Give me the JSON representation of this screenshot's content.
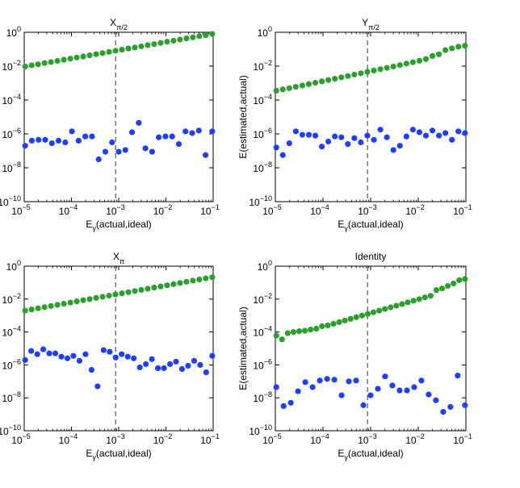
{
  "chart_data": [
    {
      "type": "scatter",
      "title": "X",
      "title_sub": "π/2",
      "xlabel": "E",
      "xlabel_sub": "γ",
      "xlabel_rest": "(actual,ideal)",
      "ylabel": "",
      "xscale": "log",
      "yscale": "log",
      "xlim": [
        1e-05,
        0.1
      ],
      "ylim": [
        1e-10,
        1
      ],
      "vline_x": 0.00086,
      "x_ticks": [
        {
          "base": "10",
          "exp": "−5"
        },
        {
          "base": "10",
          "exp": "−4"
        },
        {
          "base": "10",
          "exp": "−3"
        },
        {
          "base": "10",
          "exp": "−2"
        },
        {
          "base": "10",
          "exp": "−1"
        }
      ],
      "y_ticks": [
        {
          "base": "10",
          "exp": "−10"
        },
        {
          "base": "10",
          "exp": "−8"
        },
        {
          "base": "10",
          "exp": "−6"
        },
        {
          "base": "10",
          "exp": "−4"
        },
        {
          "base": "10",
          "exp": "−2"
        },
        {
          "base": "10",
          "exp": "0"
        }
      ],
      "series": [
        {
          "name": "green",
          "color": "#2ca02c",
          "log_y": [
            -2.02,
            -1.95,
            -1.89,
            -1.82,
            -1.76,
            -1.69,
            -1.62,
            -1.56,
            -1.49,
            -1.43,
            -1.36,
            -1.29,
            -1.23,
            -1.16,
            -1.09,
            -1.03,
            -0.96,
            -0.9,
            -0.83,
            -0.76,
            -0.7,
            -0.63,
            -0.56,
            -0.5,
            -0.43,
            -0.36,
            -0.3,
            -0.23,
            -0.17,
            -0.1
          ]
        },
        {
          "name": "blue",
          "color": "#1f3fff",
          "log_y": [
            -6.7,
            -6.4,
            -6.35,
            -6.35,
            -6.55,
            -6.4,
            -6.5,
            -5.85,
            -6.4,
            -6.15,
            -6.15,
            -7.5,
            -7.05,
            -6.5,
            -7.05,
            -6.95,
            -5.9,
            -5.35,
            -6.85,
            -7.05,
            -6.2,
            -6.15,
            -6.15,
            -6.6,
            -5.85,
            -5.95,
            -5.8,
            -7.25,
            -5.85
          ]
        }
      ]
    },
    {
      "type": "scatter",
      "title": "Y",
      "title_sub": "π/2",
      "xlabel": "E",
      "xlabel_sub": "γ",
      "xlabel_rest": "(actual,ideal)",
      "ylabel": "E(estimated,actual)",
      "xscale": "log",
      "yscale": "log",
      "xlim": [
        1e-05,
        0.1
      ],
      "ylim": [
        1e-10,
        1
      ],
      "vline_x": 0.00086,
      "x_ticks": [
        {
          "base": "10",
          "exp": "−5"
        },
        {
          "base": "10",
          "exp": "−4"
        },
        {
          "base": "10",
          "exp": "−3"
        },
        {
          "base": "10",
          "exp": "−2"
        },
        {
          "base": "10",
          "exp": "−1"
        }
      ],
      "y_ticks": [
        {
          "base": "10",
          "exp": "−10"
        },
        {
          "base": "10",
          "exp": "−8"
        },
        {
          "base": "10",
          "exp": "−6"
        },
        {
          "base": "10",
          "exp": "−4"
        },
        {
          "base": "10",
          "exp": "−2"
        },
        {
          "base": "10",
          "exp": "0"
        }
      ],
      "series": [
        {
          "name": "green",
          "color": "#2ca02c",
          "log_y": [
            -3.45,
            -3.37,
            -3.3,
            -3.22,
            -3.14,
            -3.06,
            -2.98,
            -2.9,
            -2.82,
            -2.74,
            -2.66,
            -2.58,
            -2.5,
            -2.42,
            -2.34,
            -2.26,
            -2.18,
            -2.1,
            -2.02,
            -1.94,
            -1.85,
            -1.77,
            -1.68,
            -1.58,
            -1.4,
            -1.3,
            -1.05,
            -0.95,
            -0.85,
            -0.8
          ]
        },
        {
          "name": "blue",
          "color": "#1f3fff",
          "log_y": [
            -6.8,
            -7.25,
            -6.55,
            -5.85,
            -6.05,
            -6.05,
            -6.1,
            -6.75,
            -6.45,
            -6.15,
            -6.2,
            -6.6,
            -6.25,
            -6.5,
            -6.1,
            -6.35,
            -5.75,
            -6.2,
            -6.95,
            -6.7,
            -6.15,
            -5.75,
            -5.9,
            -6.1,
            -5.8,
            -6.1,
            -5.95,
            -6.35,
            -5.85,
            -5.95
          ]
        }
      ]
    },
    {
      "type": "scatter",
      "title": "X",
      "title_sub": "π",
      "xlabel": "E",
      "xlabel_sub": "γ",
      "xlabel_rest": "(actual,ideal)",
      "ylabel": "",
      "xscale": "log",
      "yscale": "log",
      "xlim": [
        1e-05,
        0.1
      ],
      "ylim": [
        1e-10,
        1
      ],
      "vline_x": 0.00086,
      "x_ticks": [
        {
          "base": "10",
          "exp": "−5"
        },
        {
          "base": "10",
          "exp": "−4"
        },
        {
          "base": "10",
          "exp": "−3"
        },
        {
          "base": "10",
          "exp": "−2"
        },
        {
          "base": "10",
          "exp": "−1"
        }
      ],
      "y_ticks": [
        {
          "base": "10",
          "exp": "−10"
        },
        {
          "base": "10",
          "exp": "−8"
        },
        {
          "base": "10",
          "exp": "−6"
        },
        {
          "base": "10",
          "exp": "−4"
        },
        {
          "base": "10",
          "exp": "−2"
        },
        {
          "base": "10",
          "exp": "0"
        }
      ],
      "series": [
        {
          "name": "green",
          "color": "#2ca02c",
          "log_y": [
            -2.7,
            -2.63,
            -2.56,
            -2.49,
            -2.42,
            -2.35,
            -2.28,
            -2.21,
            -2.14,
            -2.07,
            -2.0,
            -1.93,
            -1.86,
            -1.79,
            -1.72,
            -1.65,
            -1.58,
            -1.51,
            -1.44,
            -1.37,
            -1.3,
            -1.23,
            -1.16,
            -1.09,
            -1.02,
            -0.95,
            -0.88,
            -0.81,
            -0.74,
            -0.67
          ]
        },
        {
          "name": "blue",
          "color": "#1f3fff",
          "log_y": [
            -5.7,
            -5.15,
            -5.35,
            -5.05,
            -5.3,
            -5.3,
            -5.5,
            -5.6,
            -5.45,
            -5.75,
            -5.35,
            -6.3,
            -7.3,
            -5.1,
            -5.2,
            -5.55,
            -5.35,
            -5.5,
            -5.6,
            -6.15,
            -5.95,
            -5.65,
            -6.2,
            -6.2,
            -5.95,
            -5.8,
            -6.25,
            -6.05,
            -5.75,
            -6.0,
            -6.45,
            -5.45
          ]
        }
      ]
    },
    {
      "type": "scatter",
      "title": "Identity",
      "title_sub": "",
      "xlabel": "E",
      "xlabel_sub": "γ",
      "xlabel_rest": "(actual,ideal)",
      "ylabel": "E(estimated,actual)",
      "xscale": "log",
      "yscale": "log",
      "xlim": [
        1e-05,
        0.1
      ],
      "ylim": [
        1e-10,
        1
      ],
      "vline_x": 0.00086,
      "x_ticks": [
        {
          "base": "10",
          "exp": "−5"
        },
        {
          "base": "10",
          "exp": "−4"
        },
        {
          "base": "10",
          "exp": "−3"
        },
        {
          "base": "10",
          "exp": "−2"
        },
        {
          "base": "10",
          "exp": "−1"
        }
      ],
      "y_ticks": [
        {
          "base": "10",
          "exp": "−10"
        },
        {
          "base": "10",
          "exp": "−8"
        },
        {
          "base": "10",
          "exp": "−6"
        },
        {
          "base": "10",
          "exp": "−4"
        },
        {
          "base": "10",
          "exp": "−2"
        },
        {
          "base": "10",
          "exp": "0"
        }
      ],
      "series": [
        {
          "name": "green",
          "color": "#2ca02c",
          "log_y": [
            -4.22,
            -4.45,
            -4.07,
            -4.0,
            -3.95,
            -3.92,
            -3.85,
            -3.8,
            -3.65,
            -3.6,
            -3.5,
            -3.4,
            -3.3,
            -3.2,
            -3.1,
            -3.0,
            -2.9,
            -2.8,
            -2.7,
            -2.6,
            -2.5,
            -2.4,
            -2.3,
            -2.2,
            -2.1,
            -2.0,
            -1.9,
            -1.8,
            -1.45,
            -1.35,
            -1.2,
            -1.05,
            -0.85,
            -0.78
          ]
        },
        {
          "name": "blue",
          "color": "#1f3fff",
          "log_y": [
            -7.35,
            -8.5,
            -8.3,
            -7.6,
            -7.05,
            -7.35,
            -6.95,
            -6.85,
            -6.9,
            -7.85,
            -7.0,
            -6.95,
            -8.45,
            -7.85,
            -7.45,
            -6.7,
            -7.25,
            -7.55,
            -7.55,
            -7.35,
            -6.95,
            -7.8,
            -8.15,
            -8.85,
            -8.55,
            -6.65,
            -8.45
          ]
        }
      ]
    }
  ]
}
